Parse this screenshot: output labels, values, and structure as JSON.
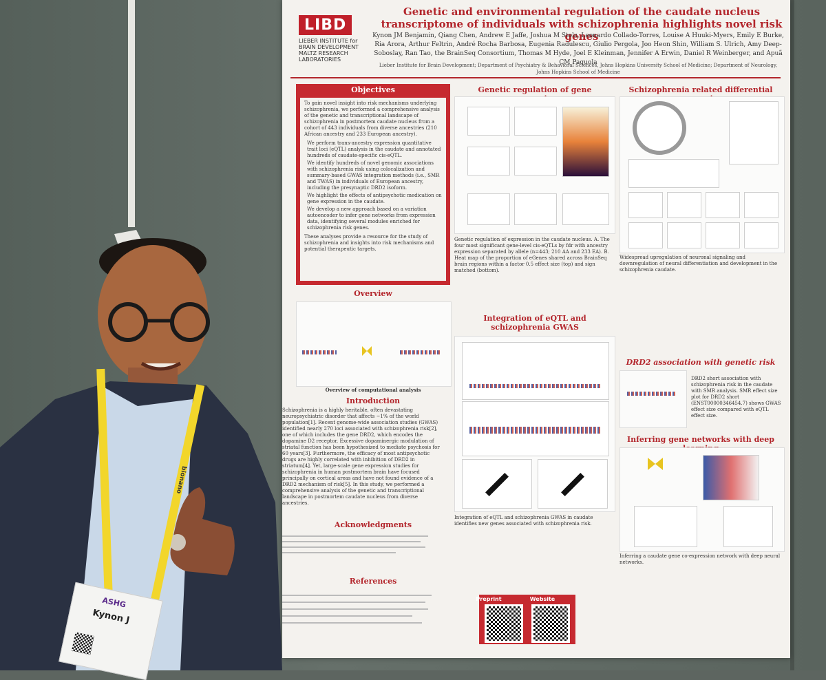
{
  "poster": {
    "logo_text": "LIBD",
    "logo_sub": "LIEBER INSTITUTE for BRAIN DEVELOPMENT MALTZ RESEARCH LABORATORIES",
    "title": "Genetic and environmental regulation of the caudate nucleus transcriptome of individuals with schizophrenia highlights novel risk genes",
    "authors": "Kynon JM Benjamin, Qiang Chen, Andrew E Jaffe, Joshua M Stolz, Leonardo Collado-Torres, Louise A Huuki-Myers, Emily E Burke, Ria Arora, Arthur Feltrin, André Rocha Barbosa, Eugenia Radulescu, Giulio Pergola, Joo Heon Shin, William S. Ulrich, Amy Deep-Soboslay, Ran Tao, the BrainSeq Consortium, Thomas M Hyde, Joel E Kleinman, Jennifer A Erwin, Daniel R Weinberger, and Apuã CM Paquola",
    "affiliations": "Lieber Institute for Brain Development; Department of Psychiatry & Behavioral Sciences, Johns Hopkins University School of Medicine; Department of Neurology, Johns Hopkins School of Medicine",
    "objectives_heading": "Objectives",
    "objectives_text": "To gain novel insight into risk mechanisms underlying schizophrenia, we performed a comprehensive analysis of the genetic and transcriptional landscape of schizophrenia in postmortem caudate nucleus from a cohort of 443 individuals from diverse ancestries (210 African ancestry and 233 European ancestry).",
    "objectives_bullets": [
      "We perform trans-ancestry expression quantitative trait loci (eQTL) analysis in the caudate and annotated hundreds of caudate-specific cis-eQTL.",
      "We identify hundreds of novel genomic associations with schizophrenia risk using colocalization and summary-based GWAS integration methods (i.e., SMR and TWAS) in individuals of European ancestry, including the presynaptic DRD2 isoform.",
      "We highlight the effects of antipsychotic medication on gene expression in the caudate.",
      "We develop a new approach based on a variation autoencoder to infer gene networks from expression data, identifying several modules enriched for schizophrenia risk genes."
    ],
    "objectives_closing": "These analyses provide a resource for the study of schizophrenia and insights into risk mechanisms and potential therapeutic targets.",
    "overview_heading": "Overview",
    "overview_caption": "Overview of computational analysis",
    "intro_heading": "Introduction",
    "intro_text": "Schizophrenia is a highly heritable, often devastating neuropsychiatric disorder that affects ~1% of the world population[1]. Recent genome-wide association studies (GWAS) identified nearly 270 loci associated with schizophrenia risk[2], one of which includes the gene DRD2, which encodes the dopamine D2 receptor. Excessive dopaminergic modulation of striatal function has been hypothesized to mediate psychosis for 60 years[3]. Furthermore, the efficacy of most antipsychotic drugs are highly correlated with inhibition of DRD2 in striatum[4]. Yet, large-scale gene expression studies for schizophrenia in human postmortem brain have focused principally on cortical areas and have not found evidence of a DRD2 mechanism of risk[5]. In this study, we performed a comprehensive analysis of the genetic and transcriptional landscape in postmortem caudate nucleus from diverse ancestries.",
    "ack_heading": "Acknowledgments",
    "refs_heading": "References",
    "gene_reg_heading": "Genetic regulation of gene expression",
    "gene_reg_caption": "Genetic regulation of expression in the caudate nucleus. A. The four most significant gene-level cis-eQTLs by fdr with ancestry expression separated by allele (n=443; 210 AA and 233 EA). B. Heat map of the proportion of eGenes shared across BrainSeq brain regions within a factor 0.5 effect size (top) and sign matched (bottom).",
    "gwas_heading": "Integration of eQTL and schizophrenia GWAS",
    "gwas_caption": "Integration of eQTL and schizophrenia GWAS in caudate identifies new genes associated with schizophrenia risk.",
    "scz_heading": "Schizophrenia related differential expression",
    "scz_caption": "Widespread upregulation of neuronal signaling and downregulation of neural differentiation and development in the schizophrenia caudate.",
    "drd2_heading": "DRD2 association with genetic risk",
    "drd2_text": "DRD2 short association with schizophrenia risk in the caudate with SMR analysis. SMR effect size plot for DRD2 short (ENST00000346454.7) shows GWAS effect size compared with eQTL effect size.",
    "deep_heading": "Inferring gene networks with deep learning",
    "deep_caption": "Inferring a caudate gene co-expression network with deep neural networks.",
    "preprint_label": "Preprint",
    "website_label": "Website"
  },
  "badge": {
    "event": "ASHG",
    "name": "Kynon J"
  },
  "lanyard_text": "bionano"
}
